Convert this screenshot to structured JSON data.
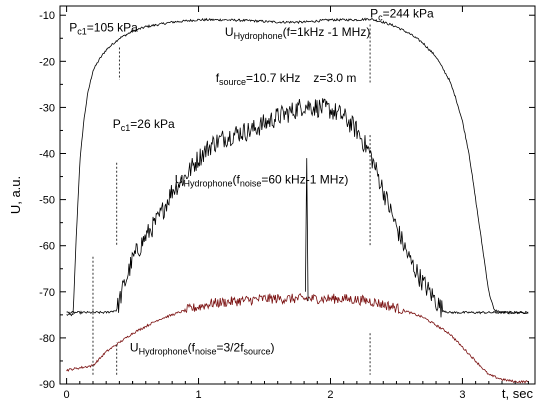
{
  "chart_data": {
    "type": "line",
    "xlabel": "t, sec",
    "ylabel": "U, a.u.",
    "xlim": [
      -0.05,
      3.55
    ],
    "ylim": [
      -90,
      -8
    ],
    "xticks": [
      0,
      1,
      2,
      3
    ],
    "yticks": [
      -90,
      -80,
      -70,
      -60,
      -50,
      -40,
      -30,
      -20,
      -10
    ],
    "grid": false,
    "series": [
      {
        "key": "hydro-1khz",
        "color": "#000000",
        "x": [
          0.0,
          0.05,
          0.07,
          0.1,
          0.13,
          0.16,
          0.2,
          0.25,
          0.3,
          0.4,
          0.5,
          0.6,
          0.8,
          1.0,
          1.2,
          1.4,
          1.6,
          1.8,
          2.0,
          2.2,
          2.3,
          2.4,
          2.5,
          2.6,
          2.7,
          2.8,
          2.9,
          2.95,
          3.0,
          3.05,
          3.1,
          3.15,
          3.2,
          3.24,
          3.3,
          3.4,
          3.5
        ],
        "y": [
          -75,
          -75,
          -60,
          -42,
          -33,
          -27,
          -22,
          -19.5,
          -17.5,
          -15,
          -13.5,
          -12.5,
          -11.5,
          -11,
          -11,
          -11.2,
          -11.5,
          -11.5,
          -11,
          -11,
          -10.8,
          -11.5,
          -12.5,
          -14,
          -16,
          -19,
          -24,
          -28,
          -33,
          -40,
          -50,
          -60,
          -70,
          -74,
          -74.5,
          -74.5,
          -74.5
        ]
      },
      {
        "key": "hydro-60khz",
        "color": "#000000",
        "x": [
          0.0,
          0.3,
          0.38,
          0.42,
          0.5,
          0.6,
          0.7,
          0.8,
          0.9,
          1.0,
          1.1,
          1.2,
          1.3,
          1.4,
          1.5,
          1.6,
          1.7,
          1.8,
          1.9,
          2.0,
          2.1,
          2.2,
          2.3,
          2.4,
          2.5,
          2.6,
          2.7,
          2.8,
          2.85,
          2.9,
          3.0,
          3.2,
          3.5
        ],
        "y": [
          -74.5,
          -74.5,
          -74,
          -70,
          -63,
          -58,
          -54,
          -48,
          -45,
          -41,
          -38,
          -36.5,
          -35.5,
          -35,
          -33.5,
          -32,
          -31,
          -29.5,
          -30,
          -30.5,
          -32,
          -35,
          -40,
          -48,
          -56,
          -63,
          -68,
          -72,
          -74,
          -74.5,
          -74.5,
          -74.5,
          -74.5
        ]
      },
      {
        "key": "hydro-3-2f",
        "color": "#7a1010",
        "x": [
          0.0,
          0.2,
          0.3,
          0.5,
          0.7,
          0.9,
          1.1,
          1.3,
          1.5,
          1.7,
          1.9,
          2.1,
          2.3,
          2.5,
          2.7,
          2.9,
          3.0,
          3.1,
          3.2,
          3.3,
          3.4,
          3.5
        ],
        "y": [
          -87,
          -86,
          -83,
          -79,
          -76,
          -74,
          -72.5,
          -72,
          -71.5,
          -71.5,
          -71.5,
          -71.5,
          -72,
          -73.5,
          -75.5,
          -79,
          -82,
          -85,
          -88,
          -89,
          -89.5,
          -89.5
        ]
      }
    ],
    "annotations": [
      {
        "key": "pc1-105",
        "main": "P",
        "sub": "c1",
        "rest": "=105  kPa",
        "x": 0.02,
        "y": -13.5
      },
      {
        "key": "pc-244",
        "main": "P",
        "sub": "c",
        "rest": "=244  kPa",
        "x": 2.3,
        "y": -10.5
      },
      {
        "key": "pc1-26",
        "main": "P",
        "sub": "c1",
        "rest": "=26    kPa",
        "x": 0.35,
        "y": -34.5
      },
      {
        "key": "fsource",
        "main": "f",
        "sub": "source",
        "rest": "=10.7 kHz",
        "x": 1.13,
        "y": -24.5
      },
      {
        "key": "zdist",
        "main": "z=3.0 m",
        "sub": "",
        "rest": "",
        "x": 1.87,
        "y": -24.5
      }
    ],
    "curve_labels": [
      {
        "key": "label-1khz",
        "main": "U",
        "sub": "Hydrophone",
        "rest": "(f=1kHz -1 MHz)",
        "x": 1.2,
        "y": -14.5
      },
      {
        "key": "label-60khz",
        "main": "U",
        "sub": "Hydrophone",
        "rest": "(f",
        "sub2": "noise",
        "rest2": "=60 kHz-1 MHz)",
        "x": 0.82,
        "y": -46.5
      },
      {
        "key": "label-3-2f",
        "main": "U",
        "sub": "Hydrophone",
        "rest": "(f",
        "sub2": "noise",
        "rest2": "=3/2f",
        "sub3": "source",
        "rest3": ")",
        "x": 0.48,
        "y": -83
      }
    ],
    "markers": [
      {
        "key": "marker-0.20",
        "x": 0.2,
        "y1": -88,
        "y2": -62
      },
      {
        "key": "marker-0.38-a",
        "x": 0.38,
        "y1": -88,
        "y2": -81
      },
      {
        "key": "marker-0.38-b",
        "x": 0.38,
        "y1": -42,
        "y2": -60
      },
      {
        "key": "marker-0.40",
        "x": 0.4,
        "y1": -17,
        "y2": -24
      },
      {
        "key": "marker-2.3-a",
        "x": 2.3,
        "y1": -12,
        "y2": -25
      },
      {
        "key": "marker-2.3-b",
        "x": 2.3,
        "y1": -36,
        "y2": -60
      },
      {
        "key": "marker-2.3-c",
        "x": 2.3,
        "y1": -79,
        "y2": -88
      }
    ]
  }
}
